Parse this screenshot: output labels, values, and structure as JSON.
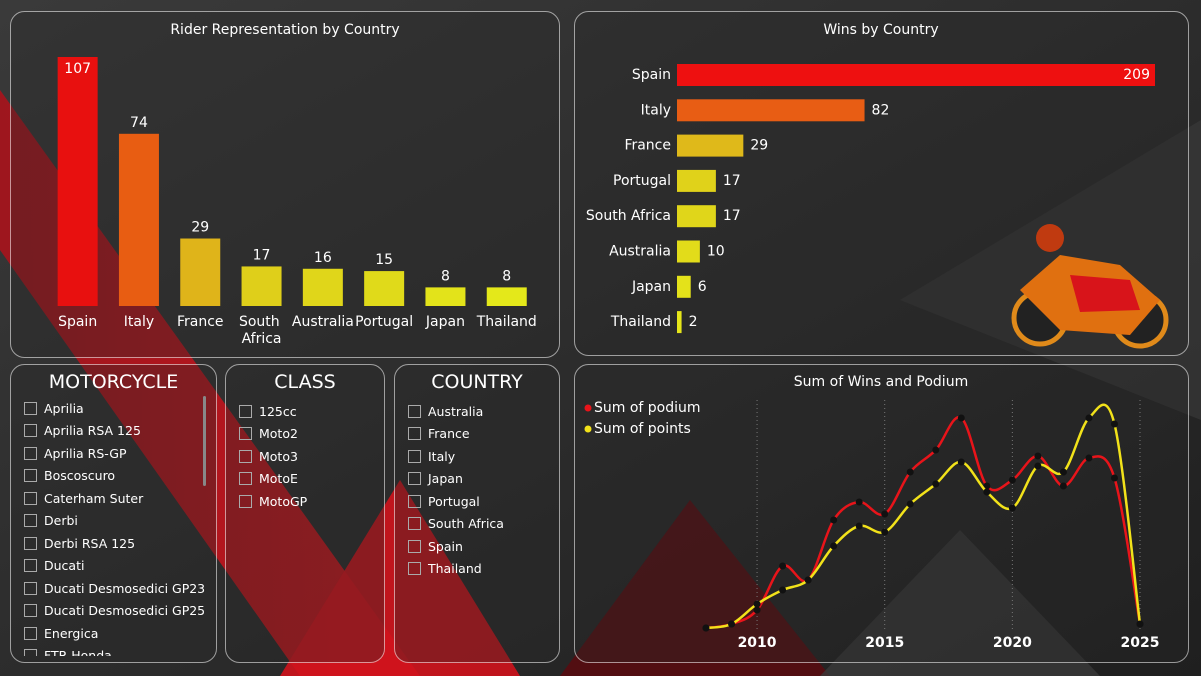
{
  "chart_data": [
    {
      "type": "column",
      "title": "Rider Representation by Country",
      "categories": [
        "Spain",
        "Italy",
        "France",
        "South Africa",
        "Australia",
        "Portugal",
        "Japan",
        "Thailand"
      ],
      "values": [
        107,
        74,
        29,
        17,
        16,
        15,
        8,
        8
      ],
      "colors": [
        "#e8100f",
        "#e85d12",
        "#dfb41a",
        "#dfcf1a",
        "#e0d61a",
        "#e0da1a",
        "#e3e31a",
        "#e4e81a"
      ]
    },
    {
      "type": "hbar",
      "title": "Wins by Country",
      "categories": [
        "Spain",
        "Italy",
        "France",
        "Portugal",
        "South Africa",
        "Australia",
        "Japan",
        "Thailand"
      ],
      "values": [
        209,
        82,
        29,
        17,
        17,
        10,
        6,
        2
      ],
      "colors": [
        "#ee1010",
        "#e85d14",
        "#dfb91a",
        "#e0d21a",
        "#e0d61a",
        "#e2dc1a",
        "#e4e21a",
        "#e6e61a"
      ]
    },
    {
      "type": "line",
      "title": "Sum of Wins and Podium",
      "x": [
        2008,
        2009,
        2010,
        2011,
        2012,
        2013,
        2014,
        2015,
        2016,
        2017,
        2018,
        2019,
        2020,
        2021,
        2022,
        2023,
        2024,
        2025
      ],
      "series": [
        {
          "name": "Sum of podium",
          "color": "#e8141a",
          "values": [
            0,
            2,
            9,
            31,
            24,
            54,
            63,
            57,
            78,
            89,
            105,
            71,
            74,
            86,
            71,
            85,
            75,
            2
          ]
        },
        {
          "name": "Sum of points",
          "color": "#f2e21a",
          "values": [
            0,
            2,
            12,
            19,
            24,
            41,
            51,
            48,
            62,
            72,
            83,
            68,
            60,
            81,
            78,
            105,
            102,
            2
          ]
        }
      ],
      "xlim": [
        2008,
        2025
      ],
      "xticks": [
        2010,
        2015,
        2020,
        2025
      ],
      "ylim": [
        0,
        110
      ],
      "grid": true,
      "legend": "top-left"
    }
  ],
  "slicers": [
    {
      "title": "MOTORCYCLE",
      "items": [
        "Aprilia",
        "Aprilia RSA 125",
        "Aprilia RS-GP",
        "Boscoscuro",
        "Caterham Suter",
        "Derbi",
        "Derbi RSA 125",
        "Ducati",
        "Ducati Desmosedici GP23",
        "Ducati Desmosedici GP25",
        "Energica",
        "FTR Honda"
      ]
    },
    {
      "title": "CLASS",
      "items": [
        "125cc",
        "Moto2",
        "Moto3",
        "MotoE",
        "MotoGP"
      ]
    },
    {
      "title": "COUNTRY",
      "items": [
        "Australia",
        "France",
        "Italy",
        "Japan",
        "Portugal",
        "South Africa",
        "Spain",
        "Thailand"
      ]
    }
  ]
}
